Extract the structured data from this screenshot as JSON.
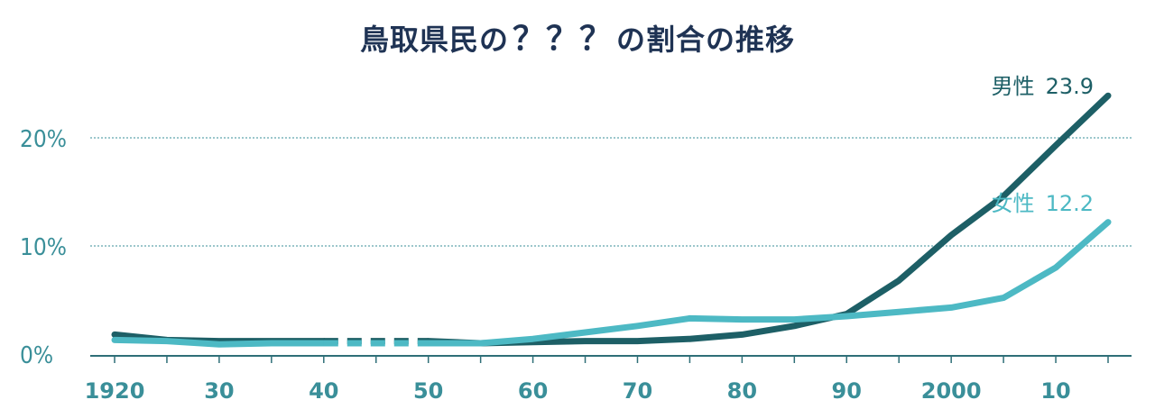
{
  "title_prefix": "鳥取県民の",
  "title_q": "？？？",
  "title_suffix": "の割合の推移",
  "colors": {
    "male": "#1d5f66",
    "female": "#4db9c4",
    "axis": "#2f6f78",
    "grid": "#3a8f99",
    "tick_text": "#3a8f99",
    "title": "#1f3354"
  },
  "chart_data": {
    "type": "line",
    "title": "鳥取県民の？？？の割合の推移",
    "xlabel": "",
    "ylabel": "",
    "xlim": [
      1920,
      2015
    ],
    "ylim": [
      0,
      25
    ],
    "y_ticks": [
      0,
      10,
      20
    ],
    "y_tick_labels": [
      "0%",
      "10%",
      "20%"
    ],
    "x_ticks": [
      1920,
      1930,
      1940,
      1950,
      1960,
      1970,
      1980,
      1990,
      2000,
      2010
    ],
    "x_tick_labels": [
      "1920",
      "30",
      "40",
      "50",
      "60",
      "70",
      "80",
      "90",
      "2000",
      "10"
    ],
    "gap": [
      1940,
      1950
    ],
    "grid": true,
    "series": [
      {
        "name": "男性",
        "end_value": "23.9",
        "x": [
          1920,
          1925,
          1930,
          1935,
          1940,
          1950,
          1955,
          1960,
          1965,
          1970,
          1975,
          1980,
          1985,
          1990,
          1995,
          2000,
          2005,
          2010,
          2015
        ],
        "values": [
          1.8,
          1.3,
          1.2,
          1.2,
          1.2,
          1.2,
          1.0,
          1.1,
          1.2,
          1.2,
          1.4,
          1.8,
          2.6,
          3.7,
          6.8,
          11.0,
          14.6,
          19.3,
          23.9
        ]
      },
      {
        "name": "女性",
        "end_value": "12.2",
        "x": [
          1920,
          1925,
          1930,
          1935,
          1940,
          1950,
          1955,
          1960,
          1965,
          1970,
          1975,
          1980,
          1985,
          1990,
          1995,
          2000,
          2005,
          2010,
          2015
        ],
        "values": [
          1.3,
          1.2,
          0.9,
          1.0,
          1.0,
          1.0,
          1.0,
          1.4,
          2.0,
          2.6,
          3.3,
          3.2,
          3.2,
          3.5,
          3.9,
          4.3,
          5.2,
          8.0,
          12.2
        ]
      }
    ]
  }
}
